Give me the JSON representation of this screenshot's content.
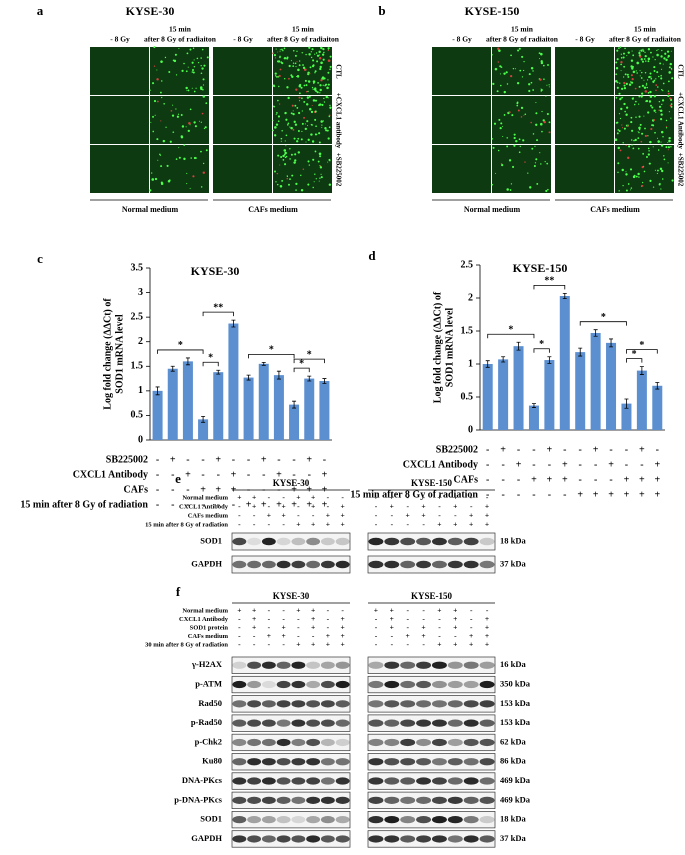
{
  "panel_a": {
    "letter": "a",
    "title": "KYSE-30",
    "column_headers": [
      [
        "- 8 Gy"
      ],
      [
        "15 min",
        "after 8 Gy of radiaiton"
      ],
      [
        "- 8 Gy"
      ],
      [
        "15 min",
        "after 8 Gy of radiaiton"
      ]
    ],
    "row_labels": [
      "CTL",
      "+CXCL1 antibody",
      "+SB225002"
    ],
    "group_labels": [
      "Normal medium",
      "CAFs medium"
    ]
  },
  "panel_b": {
    "letter": "b",
    "title": "KYSE-150",
    "column_headers": [
      [
        "- 8 Gy"
      ],
      [
        "15 min",
        "after 8 Gy of radiaiton"
      ],
      [
        "- 8 Gy"
      ],
      [
        "15 min",
        "after 8 Gy of radiaiton"
      ]
    ],
    "row_labels": [
      "CTL",
      "+CXCL1 Antibody",
      "+SB225002"
    ],
    "group_labels": [
      "Normal medium",
      "CAFs medium"
    ]
  },
  "chart_data": [
    {
      "type": "bar",
      "letter": "c",
      "title": "KYSE-30",
      "y_label": [
        "Log fold change (ΔΔCt) of",
        "SOD1 mRNA level"
      ],
      "values": [
        1.0,
        1.45,
        1.6,
        0.42,
        1.38,
        2.37,
        1.27,
        1.55,
        1.32,
        0.72,
        1.25,
        1.2
      ],
      "errors": [
        0.08,
        0.05,
        0.07,
        0.06,
        0.04,
        0.07,
        0.05,
        0.03,
        0.08,
        0.07,
        0.05,
        0.05
      ],
      "color": "#5b8fd0",
      "ylim": [
        0,
        3.5
      ],
      "yticks": [
        0,
        0.5,
        1,
        1.5,
        2,
        2.5,
        3,
        3.5
      ],
      "annotations": [
        "*",
        "**",
        "*",
        "*",
        "*",
        "*"
      ],
      "treatments": [
        {
          "name": "SB225002",
          "signs": [
            "-",
            "+",
            "-",
            "-",
            "+",
            "-",
            "-",
            "+",
            "-",
            "-",
            "+",
            "-"
          ]
        },
        {
          "name": "CXCL1 Antibody",
          "signs": [
            "-",
            "-",
            "+",
            "-",
            "-",
            "+",
            "-",
            "-",
            "+",
            "-",
            "-",
            "+"
          ]
        },
        {
          "name": "CAFs",
          "signs": [
            "-",
            "-",
            "-",
            "+",
            "+",
            "+",
            "-",
            "-",
            "-",
            "+",
            "+",
            "+"
          ]
        },
        {
          "name": "15 min after 8 Gy of radiation",
          "signs": [
            "-",
            "-",
            "-",
            "-",
            "-",
            "-",
            "+",
            "+",
            "+",
            "+",
            "+",
            "+"
          ]
        }
      ]
    },
    {
      "type": "bar",
      "letter": "d",
      "title": "KYSE-150",
      "y_label": [
        "Log fold change (ΔΔCt) of",
        "SOD1 mRNA level"
      ],
      "values": [
        1.0,
        1.07,
        1.27,
        0.37,
        1.06,
        2.03,
        1.18,
        1.47,
        1.32,
        0.4,
        0.9,
        0.67
      ],
      "errors": [
        0.05,
        0.04,
        0.06,
        0.03,
        0.05,
        0.04,
        0.06,
        0.05,
        0.06,
        0.07,
        0.06,
        0.05
      ],
      "color": "#5b8fd0",
      "ylim": [
        0,
        2.5
      ],
      "yticks": [
        0,
        0.5,
        1,
        1.5,
        2,
        2.5
      ],
      "annotations": [
        "*",
        "**",
        "*",
        "*",
        "*",
        "*"
      ],
      "treatments": [
        {
          "name": "SB225002",
          "signs": [
            "-",
            "+",
            "-",
            "-",
            "+",
            "-",
            "-",
            "+",
            "-",
            "-",
            "+",
            "-"
          ]
        },
        {
          "name": "CXCL1 Antibody",
          "signs": [
            "-",
            "-",
            "+",
            "-",
            "-",
            "+",
            "-",
            "-",
            "+",
            "-",
            "-",
            "+"
          ]
        },
        {
          "name": "CAFs",
          "signs": [
            "-",
            "-",
            "-",
            "+",
            "+",
            "+",
            "-",
            "-",
            "-",
            "+",
            "+",
            "+"
          ]
        },
        {
          "name": "15 min after 8 Gy of radiation",
          "signs": [
            "-",
            "-",
            "-",
            "-",
            "-",
            "-",
            "+",
            "+",
            "+",
            "+",
            "+",
            "+"
          ]
        }
      ]
    }
  ],
  "panel_e": {
    "letter": "e",
    "cell_lines": [
      "KYSE-30",
      "KYSE-150"
    ],
    "conditions": [
      {
        "name": "Normal medium",
        "signs": [
          "+",
          "+",
          "-",
          "-",
          "+",
          "+",
          "-",
          "-"
        ]
      },
      {
        "name": "CXCL1 Antibody",
        "signs": [
          "-",
          "+",
          "-",
          "+",
          "-",
          "+",
          "-",
          "+"
        ]
      },
      {
        "name": "CAFs medium",
        "signs": [
          "-",
          "-",
          "+",
          "+",
          "-",
          "-",
          "+",
          "+"
        ]
      },
      {
        "name": "15 min after 8 Gy of radiation",
        "signs": [
          "-",
          "-",
          "-",
          "-",
          "+",
          "+",
          "+",
          "+"
        ]
      }
    ],
    "bands": [
      {
        "name": "SOD1",
        "size": "18 kDa"
      },
      {
        "name": "GAPDH",
        "size": "37 kDa"
      }
    ]
  },
  "panel_f": {
    "letter": "f",
    "cell_lines": [
      "KYSE-30",
      "KYSE-150"
    ],
    "conditions": [
      {
        "name": "Normal medium",
        "signs": [
          "+",
          "+",
          "-",
          "-",
          "+",
          "+",
          "-",
          "-"
        ]
      },
      {
        "name": "CXCL1 Antibody",
        "signs": [
          "-",
          "+",
          "-",
          "-",
          "-",
          "+",
          "-",
          "+"
        ]
      },
      {
        "name": "SOD1 protein",
        "signs": [
          "-",
          "+",
          "-",
          "+",
          "-",
          "+",
          "-",
          "+"
        ]
      },
      {
        "name": "CAFs medium",
        "signs": [
          "-",
          "-",
          "+",
          "+",
          "-",
          "-",
          "+",
          "+"
        ]
      },
      {
        "name": "30 min after 8 Gy of radiation",
        "signs": [
          "-",
          "-",
          "-",
          "-",
          "+",
          "+",
          "+",
          "+"
        ]
      }
    ],
    "bands": [
      {
        "name": "γ-H2AX",
        "size": "16 kDa"
      },
      {
        "name": "p-ATM",
        "size": "350 kDa"
      },
      {
        "name": "Rad50",
        "size": "153 kDa"
      },
      {
        "name": "p-Rad50",
        "size": "153 kDa"
      },
      {
        "name": "p-Chk2",
        "size": "62 kDa"
      },
      {
        "name": "Ku80",
        "size": "86 kDa"
      },
      {
        "name": "DNA-PKcs",
        "size": "469 kDa"
      },
      {
        "name": "p-DNA-PKcs",
        "size": "469 kDa"
      },
      {
        "name": "SOD1",
        "size": "18 kDa"
      },
      {
        "name": "GAPDH",
        "size": "37 kDa"
      }
    ]
  }
}
